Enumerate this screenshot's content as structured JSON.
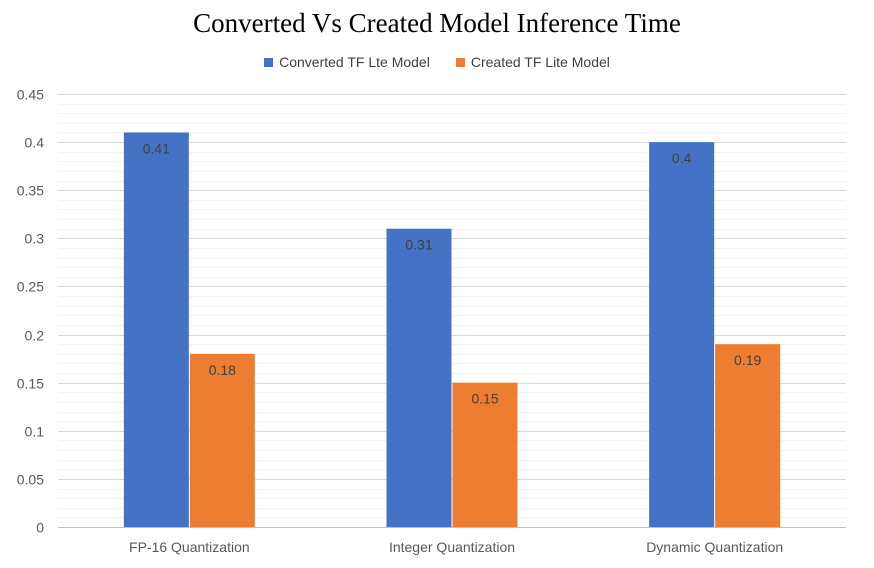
{
  "chart_data": {
    "type": "bar",
    "title": "Converted Vs Created Model Inference Time",
    "categories": [
      "FP-16 Quantization",
      "Integer Quantization",
      "Dynamic Quantization"
    ],
    "series": [
      {
        "name": "Converted TF Lte Model",
        "values": [
          0.41,
          0.31,
          0.4
        ],
        "color": "#4472C4"
      },
      {
        "name": "Created TF Lite Model",
        "values": [
          0.18,
          0.15,
          0.19
        ],
        "color": "#ED7D31"
      }
    ],
    "data_labels": [
      [
        "0.41",
        "0.31",
        "0.4"
      ],
      [
        "0.18",
        "0.15",
        "0.19"
      ]
    ],
    "ylim": [
      0,
      0.45
    ],
    "yticks": [
      "0",
      "0.05",
      "0.1",
      "0.15",
      "0.2",
      "0.25",
      "0.3",
      "0.35",
      "0.4",
      "0.45"
    ],
    "ytick_values": [
      0,
      0.05,
      0.1,
      0.15,
      0.2,
      0.25,
      0.3,
      0.35,
      0.4,
      0.45
    ],
    "grid": true,
    "legend_position": "top"
  }
}
